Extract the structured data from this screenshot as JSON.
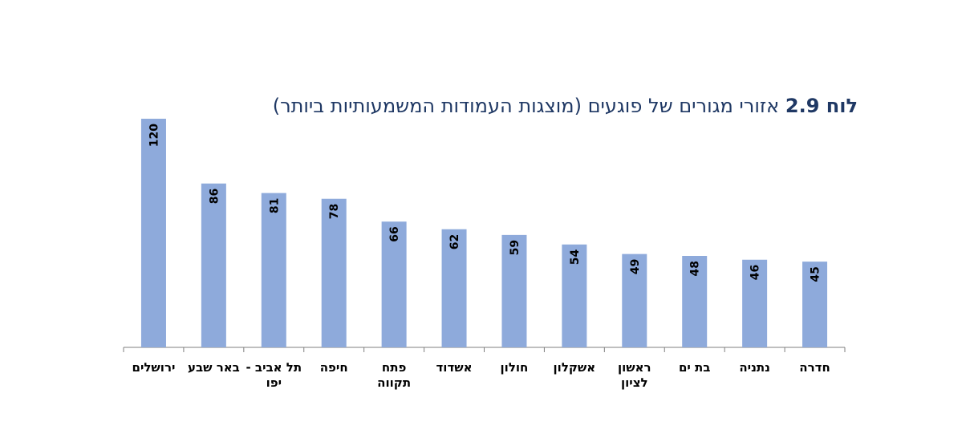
{
  "chart_data": {
    "type": "bar",
    "title_prefix": "לוח 2.9",
    "title_rest": "אזורי מגורים של פוגעים (מוצגות העמודות המשמעותיות ביותר)",
    "categories": [
      [
        "ירושלים"
      ],
      [
        "באר שבע"
      ],
      [
        "תל אביב -",
        "יפו"
      ],
      [
        "חיפה"
      ],
      [
        "פתח",
        "תקווה"
      ],
      [
        "אשדוד"
      ],
      [
        "חולון"
      ],
      [
        "אשקלון"
      ],
      [
        "ראשון",
        "לציון"
      ],
      [
        "בת ים"
      ],
      [
        "נתניה"
      ],
      [
        "חדרה"
      ]
    ],
    "values": [
      120,
      86,
      81,
      78,
      66,
      62,
      59,
      54,
      49,
      48,
      46,
      45
    ],
    "value_labels": [
      "120",
      "86",
      "81",
      "78",
      "66",
      "62",
      "59",
      "54",
      "49",
      "48",
      "46",
      "45"
    ],
    "ylim": [
      0,
      120
    ],
    "colors": {
      "bar": "#8eaadb",
      "title": "#1f3864"
    },
    "grid": false,
    "data_labels": "inside-top-rotated"
  }
}
